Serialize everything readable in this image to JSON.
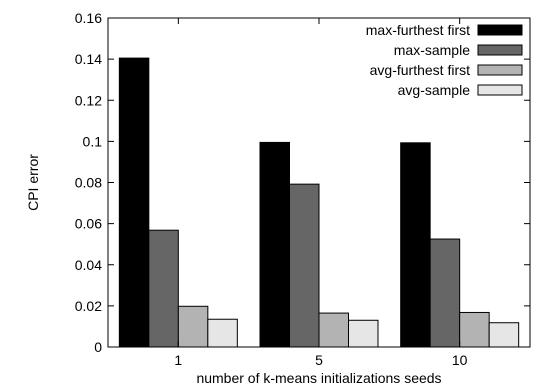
{
  "chart_data": {
    "type": "bar",
    "title": "",
    "xlabel": "number of k-means initializations seeds",
    "ylabel": "CPI error",
    "categories": [
      "1",
      "5",
      "10"
    ],
    "ylim": [
      0,
      0.16
    ],
    "yticks": [
      0,
      0.02,
      0.04,
      0.06,
      0.08,
      0.1,
      0.12,
      0.14,
      0.16
    ],
    "ytick_labels": [
      "0",
      "0.02",
      "0.04",
      "0.06",
      "0.08",
      "0.1",
      "0.12",
      "0.14",
      "0.16"
    ],
    "grid": false,
    "legend_position": "top-right",
    "series": [
      {
        "name": "max-furthest first",
        "color": "#000000",
        "values": [
          0.1405,
          0.0995,
          0.0993
        ]
      },
      {
        "name": "max-sample",
        "color": "#666666",
        "values": [
          0.0568,
          0.0792,
          0.0525
        ]
      },
      {
        "name": "avg-furthest first",
        "color": "#b3b3b3",
        "values": [
          0.0198,
          0.0165,
          0.0168
        ]
      },
      {
        "name": "avg-sample",
        "color": "#e6e6e6",
        "values": [
          0.0135,
          0.013,
          0.0118
        ]
      }
    ]
  }
}
